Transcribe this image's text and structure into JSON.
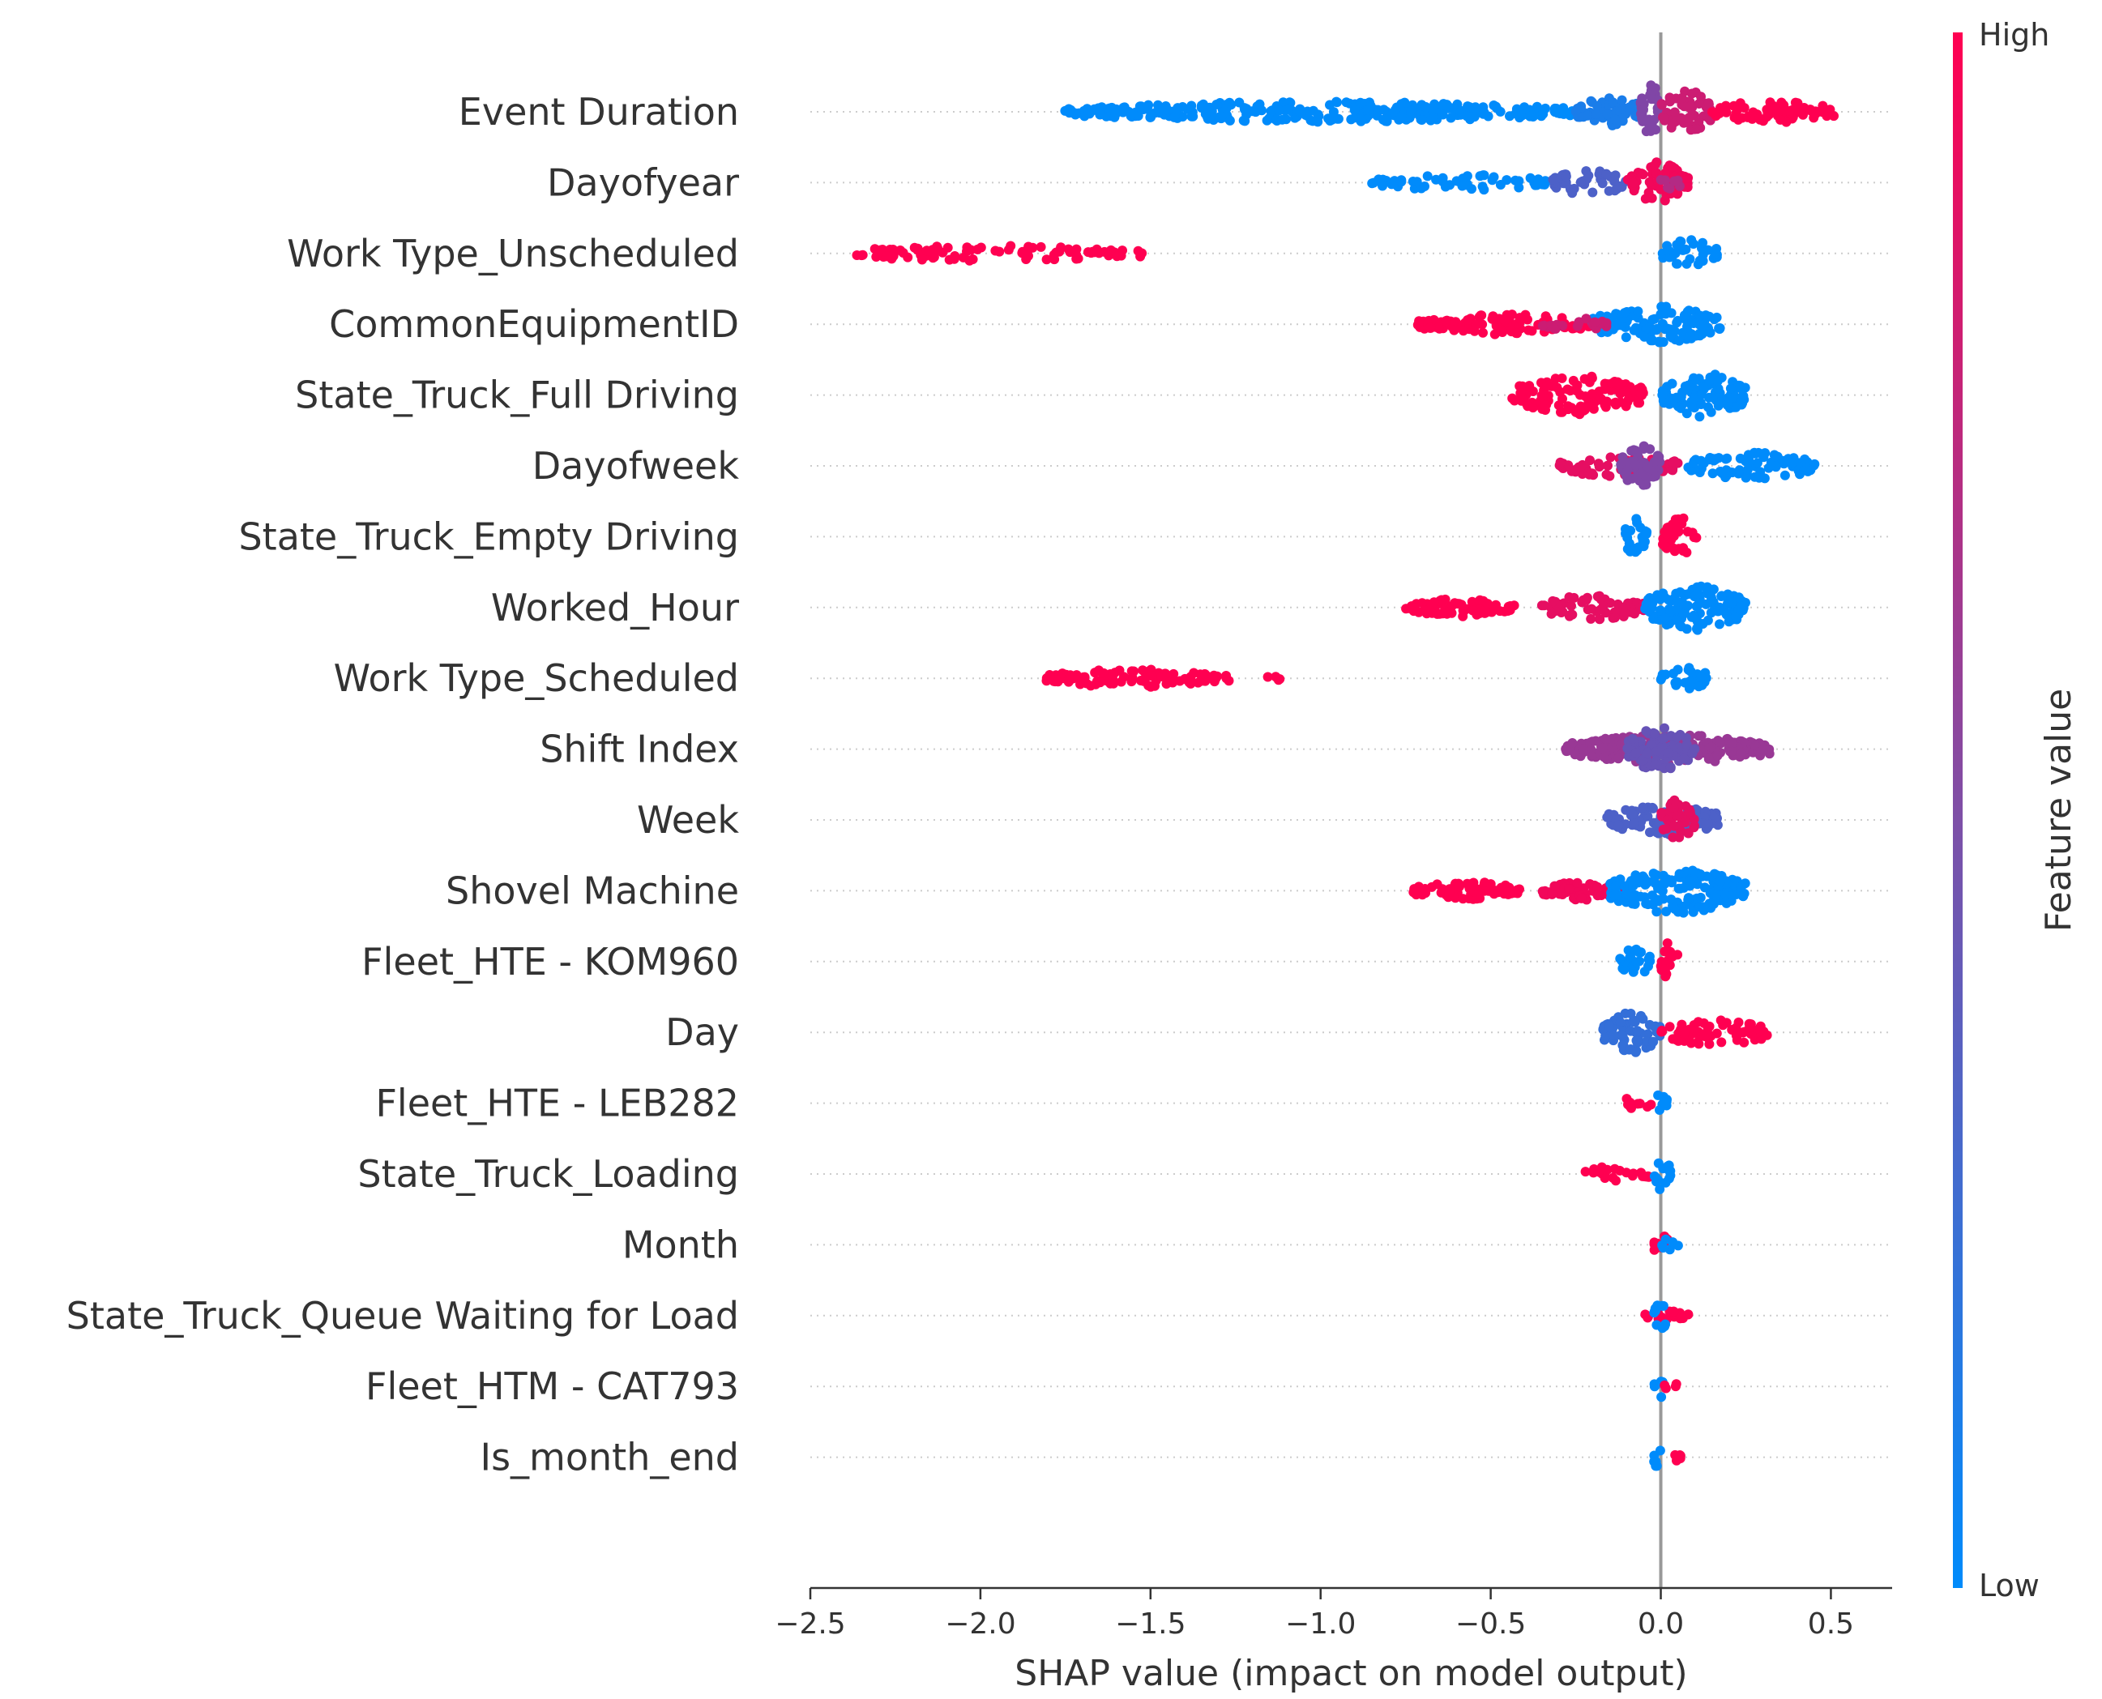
{
  "chart_data": {
    "type": "scatter",
    "subtype": "shap_beeswarm_summary",
    "title": "",
    "xlabel": "SHAP value (impact on model output)",
    "ylabel": "",
    "xlim": [
      -2.5,
      0.68
    ],
    "xticks": [
      -2.5,
      -2.0,
      -1.5,
      -1.0,
      -0.5,
      0.0,
      0.5
    ],
    "xtick_labels": [
      "−2.5",
      "−2.0",
      "−1.5",
      "−1.0",
      "−0.5",
      "0.0",
      "0.5"
    ],
    "colorbar": {
      "label": "Feature value",
      "high_label": "High",
      "low_label": "Low",
      "high_color": "#ff0051",
      "low_color": "#008bfb"
    },
    "features": [
      {
        "name": "Event Duration",
        "clusters": [
          {
            "min": -1.76,
            "max": -0.25,
            "hue": 0.0,
            "w": 1.8
          },
          {
            "min": -0.25,
            "max": -0.05,
            "hue": 0.1,
            "w": 2.6
          },
          {
            "min": -0.06,
            "max": 0.0,
            "hue": 0.5,
            "w": 5
          },
          {
            "min": 0.0,
            "max": 0.15,
            "hue": 0.8,
            "w": 4
          },
          {
            "min": 0.15,
            "max": 0.52,
            "hue": 1.0,
            "w": 2
          }
        ]
      },
      {
        "name": "Dayofyear",
        "clusters": [
          {
            "min": -0.86,
            "max": -0.32,
            "hue": 0.0,
            "w": 1.4
          },
          {
            "min": -0.32,
            "max": -0.1,
            "hue": 0.3,
            "w": 2.2
          },
          {
            "min": -0.1,
            "max": 0.08,
            "hue": 0.95,
            "w": 3.6
          },
          {
            "min": 0.0,
            "max": 0.07,
            "hue": 0.7,
            "w": 1.4
          }
        ]
      },
      {
        "name": "Work Type_Unscheduled",
        "clusters": [
          {
            "min": -2.4,
            "max": -1.57,
            "hue": 1.0,
            "w": 1.4
          },
          {
            "min": -1.54,
            "max": -1.52,
            "hue": 1.0,
            "w": 0.8
          },
          {
            "min": 0.0,
            "max": 0.17,
            "hue": 0.0,
            "w": 2.4
          }
        ]
      },
      {
        "name": "CommonEquipmentID",
        "clusters": [
          {
            "min": -0.72,
            "max": -0.2,
            "hue": 1.0,
            "w": 1.8
          },
          {
            "min": -0.2,
            "max": 0.18,
            "hue": 0.0,
            "w": 3.2
          },
          {
            "min": -0.35,
            "max": -0.15,
            "hue": 0.8,
            "w": 1.2
          }
        ]
      },
      {
        "name": "State_Truck_Full Driving",
        "clusters": [
          {
            "min": -0.44,
            "max": -0.05,
            "hue": 1.0,
            "w": 3.4
          },
          {
            "min": 0.0,
            "max": 0.25,
            "hue": 0.0,
            "w": 4
          }
        ]
      },
      {
        "name": "Dayofweek",
        "clusters": [
          {
            "min": -0.3,
            "max": 0.05,
            "hue": 0.9,
            "w": 2
          },
          {
            "min": -0.12,
            "max": 0.0,
            "hue": 0.5,
            "w": 3.6
          },
          {
            "min": 0.08,
            "max": 0.46,
            "hue": 0.0,
            "w": 2.4
          }
        ]
      },
      {
        "name": "State_Truck_Empty Driving",
        "clusters": [
          {
            "min": -0.11,
            "max": -0.04,
            "hue": 0.0,
            "w": 3.4
          },
          {
            "min": 0.0,
            "max": 0.11,
            "hue": 1.0,
            "w": 3.4
          }
        ]
      },
      {
        "name": "Worked_Hour",
        "clusters": [
          {
            "min": -0.75,
            "max": -0.43,
            "hue": 1.0,
            "w": 1.6
          },
          {
            "min": -0.35,
            "max": -0.05,
            "hue": 0.9,
            "w": 2.2
          },
          {
            "min": -0.05,
            "max": 0.25,
            "hue": 0.0,
            "w": 4
          }
        ]
      },
      {
        "name": "Work Type_Scheduled",
        "clusters": [
          {
            "min": -1.81,
            "max": -1.3,
            "hue": 1.0,
            "w": 1.6
          },
          {
            "min": -1.29,
            "max": -1.26,
            "hue": 1.0,
            "w": 0.8
          },
          {
            "min": -1.16,
            "max": -1.12,
            "hue": 1.0,
            "w": 0.8
          },
          {
            "min": 0.0,
            "max": 0.14,
            "hue": 0.0,
            "w": 2.2
          }
        ]
      },
      {
        "name": "Shift Index",
        "clusters": [
          {
            "min": -0.28,
            "max": 0.32,
            "hue": 0.6,
            "w": 2.6
          },
          {
            "min": -0.1,
            "max": 0.1,
            "hue": 0.4,
            "w": 4
          }
        ]
      },
      {
        "name": "Week",
        "clusters": [
          {
            "min": -0.16,
            "max": 0.18,
            "hue": 0.3,
            "w": 2.6
          },
          {
            "min": 0.0,
            "max": 0.1,
            "hue": 0.9,
            "w": 3.6
          }
        ]
      },
      {
        "name": "Shovel Machine",
        "clusters": [
          {
            "min": -0.73,
            "max": -0.41,
            "hue": 1.0,
            "w": 1.6
          },
          {
            "min": -0.35,
            "max": -0.1,
            "hue": 0.95,
            "w": 1.6
          },
          {
            "min": -0.15,
            "max": 0.25,
            "hue": 0.0,
            "w": 4
          }
        ]
      },
      {
        "name": "Fleet_HTE - KOM960",
        "clusters": [
          {
            "min": -0.12,
            "max": -0.03,
            "hue": 0.0,
            "w": 2.6
          },
          {
            "min": 0.0,
            "max": 0.05,
            "hue": 1.0,
            "w": 3.4
          }
        ]
      },
      {
        "name": "Day",
        "clusters": [
          {
            "min": -0.17,
            "max": 0.0,
            "hue": 0.2,
            "w": 3.6
          },
          {
            "min": 0.0,
            "max": 0.32,
            "hue": 1.0,
            "w": 2.4
          }
        ]
      },
      {
        "name": "Fleet_HTE - LEB282",
        "clusters": [
          {
            "min": -0.11,
            "max": -0.02,
            "hue": 1.0,
            "w": 1.4
          },
          {
            "min": -0.02,
            "max": 0.02,
            "hue": 0.0,
            "w": 2.4
          }
        ]
      },
      {
        "name": "State_Truck_Loading",
        "clusters": [
          {
            "min": -0.24,
            "max": -0.03,
            "hue": 1.0,
            "w": 1.4
          },
          {
            "min": -0.02,
            "max": 0.03,
            "hue": 0.0,
            "w": 3
          }
        ]
      },
      {
        "name": "Month",
        "clusters": [
          {
            "min": -0.02,
            "max": 0.02,
            "hue": 1.0,
            "w": 2.8
          },
          {
            "min": 0.0,
            "max": 0.06,
            "hue": 0.0,
            "w": 1.2
          }
        ]
      },
      {
        "name": "State_Truck_Queue Waiting for Load",
        "clusters": [
          {
            "min": -0.05,
            "max": 0.09,
            "hue": 1.0,
            "w": 0.8
          },
          {
            "min": -0.02,
            "max": 0.02,
            "hue": 0.0,
            "w": 2.6
          }
        ]
      },
      {
        "name": "Fleet_HTM - CAT793",
        "clusters": [
          {
            "min": -0.02,
            "max": 0.01,
            "hue": 0.0,
            "w": 2.4
          },
          {
            "min": 0.01,
            "max": 0.05,
            "hue": 1.0,
            "w": 0.8
          }
        ]
      },
      {
        "name": "Is_month_end",
        "clusters": [
          {
            "min": -0.02,
            "max": 0.01,
            "hue": 0.0,
            "w": 2.4
          },
          {
            "min": 0.01,
            "max": 0.06,
            "hue": 1.0,
            "w": 0.8
          }
        ]
      }
    ]
  }
}
